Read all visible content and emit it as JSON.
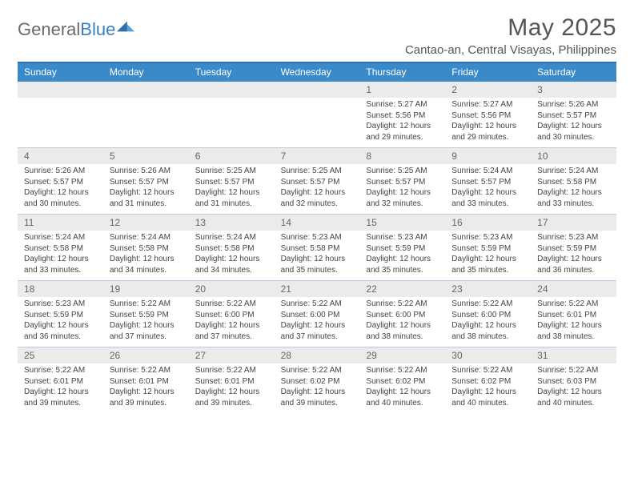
{
  "header": {
    "logo_general": "General",
    "logo_blue": "Blue",
    "month_title": "May 2025",
    "location": "Cantao-an, Central Visayas, Philippines"
  },
  "colors": {
    "header_bar": "#3a8ac9",
    "border_top": "#2f6fa8",
    "row_divider": "#b9cde0",
    "daynum_bg": "#ebebeb",
    "text_main": "#444444",
    "text_muted": "#666666",
    "logo_gray": "#6a6a6a",
    "logo_blue": "#3a7fbf"
  },
  "weekdays": [
    "Sunday",
    "Monday",
    "Tuesday",
    "Wednesday",
    "Thursday",
    "Friday",
    "Saturday"
  ],
  "weeks": [
    [
      {
        "num": "",
        "lines": []
      },
      {
        "num": "",
        "lines": []
      },
      {
        "num": "",
        "lines": []
      },
      {
        "num": "",
        "lines": []
      },
      {
        "num": "1",
        "lines": [
          "Sunrise: 5:27 AM",
          "Sunset: 5:56 PM",
          "Daylight: 12 hours",
          "and 29 minutes."
        ]
      },
      {
        "num": "2",
        "lines": [
          "Sunrise: 5:27 AM",
          "Sunset: 5:56 PM",
          "Daylight: 12 hours",
          "and 29 minutes."
        ]
      },
      {
        "num": "3",
        "lines": [
          "Sunrise: 5:26 AM",
          "Sunset: 5:57 PM",
          "Daylight: 12 hours",
          "and 30 minutes."
        ]
      }
    ],
    [
      {
        "num": "4",
        "lines": [
          "Sunrise: 5:26 AM",
          "Sunset: 5:57 PM",
          "Daylight: 12 hours",
          "and 30 minutes."
        ]
      },
      {
        "num": "5",
        "lines": [
          "Sunrise: 5:26 AM",
          "Sunset: 5:57 PM",
          "Daylight: 12 hours",
          "and 31 minutes."
        ]
      },
      {
        "num": "6",
        "lines": [
          "Sunrise: 5:25 AM",
          "Sunset: 5:57 PM",
          "Daylight: 12 hours",
          "and 31 minutes."
        ]
      },
      {
        "num": "7",
        "lines": [
          "Sunrise: 5:25 AM",
          "Sunset: 5:57 PM",
          "Daylight: 12 hours",
          "and 32 minutes."
        ]
      },
      {
        "num": "8",
        "lines": [
          "Sunrise: 5:25 AM",
          "Sunset: 5:57 PM",
          "Daylight: 12 hours",
          "and 32 minutes."
        ]
      },
      {
        "num": "9",
        "lines": [
          "Sunrise: 5:24 AM",
          "Sunset: 5:57 PM",
          "Daylight: 12 hours",
          "and 33 minutes."
        ]
      },
      {
        "num": "10",
        "lines": [
          "Sunrise: 5:24 AM",
          "Sunset: 5:58 PM",
          "Daylight: 12 hours",
          "and 33 minutes."
        ]
      }
    ],
    [
      {
        "num": "11",
        "lines": [
          "Sunrise: 5:24 AM",
          "Sunset: 5:58 PM",
          "Daylight: 12 hours",
          "and 33 minutes."
        ]
      },
      {
        "num": "12",
        "lines": [
          "Sunrise: 5:24 AM",
          "Sunset: 5:58 PM",
          "Daylight: 12 hours",
          "and 34 minutes."
        ]
      },
      {
        "num": "13",
        "lines": [
          "Sunrise: 5:24 AM",
          "Sunset: 5:58 PM",
          "Daylight: 12 hours",
          "and 34 minutes."
        ]
      },
      {
        "num": "14",
        "lines": [
          "Sunrise: 5:23 AM",
          "Sunset: 5:58 PM",
          "Daylight: 12 hours",
          "and 35 minutes."
        ]
      },
      {
        "num": "15",
        "lines": [
          "Sunrise: 5:23 AM",
          "Sunset: 5:59 PM",
          "Daylight: 12 hours",
          "and 35 minutes."
        ]
      },
      {
        "num": "16",
        "lines": [
          "Sunrise: 5:23 AM",
          "Sunset: 5:59 PM",
          "Daylight: 12 hours",
          "and 35 minutes."
        ]
      },
      {
        "num": "17",
        "lines": [
          "Sunrise: 5:23 AM",
          "Sunset: 5:59 PM",
          "Daylight: 12 hours",
          "and 36 minutes."
        ]
      }
    ],
    [
      {
        "num": "18",
        "lines": [
          "Sunrise: 5:23 AM",
          "Sunset: 5:59 PM",
          "Daylight: 12 hours",
          "and 36 minutes."
        ]
      },
      {
        "num": "19",
        "lines": [
          "Sunrise: 5:22 AM",
          "Sunset: 5:59 PM",
          "Daylight: 12 hours",
          "and 37 minutes."
        ]
      },
      {
        "num": "20",
        "lines": [
          "Sunrise: 5:22 AM",
          "Sunset: 6:00 PM",
          "Daylight: 12 hours",
          "and 37 minutes."
        ]
      },
      {
        "num": "21",
        "lines": [
          "Sunrise: 5:22 AM",
          "Sunset: 6:00 PM",
          "Daylight: 12 hours",
          "and 37 minutes."
        ]
      },
      {
        "num": "22",
        "lines": [
          "Sunrise: 5:22 AM",
          "Sunset: 6:00 PM",
          "Daylight: 12 hours",
          "and 38 minutes."
        ]
      },
      {
        "num": "23",
        "lines": [
          "Sunrise: 5:22 AM",
          "Sunset: 6:00 PM",
          "Daylight: 12 hours",
          "and 38 minutes."
        ]
      },
      {
        "num": "24",
        "lines": [
          "Sunrise: 5:22 AM",
          "Sunset: 6:01 PM",
          "Daylight: 12 hours",
          "and 38 minutes."
        ]
      }
    ],
    [
      {
        "num": "25",
        "lines": [
          "Sunrise: 5:22 AM",
          "Sunset: 6:01 PM",
          "Daylight: 12 hours",
          "and 39 minutes."
        ]
      },
      {
        "num": "26",
        "lines": [
          "Sunrise: 5:22 AM",
          "Sunset: 6:01 PM",
          "Daylight: 12 hours",
          "and 39 minutes."
        ]
      },
      {
        "num": "27",
        "lines": [
          "Sunrise: 5:22 AM",
          "Sunset: 6:01 PM",
          "Daylight: 12 hours",
          "and 39 minutes."
        ]
      },
      {
        "num": "28",
        "lines": [
          "Sunrise: 5:22 AM",
          "Sunset: 6:02 PM",
          "Daylight: 12 hours",
          "and 39 minutes."
        ]
      },
      {
        "num": "29",
        "lines": [
          "Sunrise: 5:22 AM",
          "Sunset: 6:02 PM",
          "Daylight: 12 hours",
          "and 40 minutes."
        ]
      },
      {
        "num": "30",
        "lines": [
          "Sunrise: 5:22 AM",
          "Sunset: 6:02 PM",
          "Daylight: 12 hours",
          "and 40 minutes."
        ]
      },
      {
        "num": "31",
        "lines": [
          "Sunrise: 5:22 AM",
          "Sunset: 6:03 PM",
          "Daylight: 12 hours",
          "and 40 minutes."
        ]
      }
    ]
  ]
}
